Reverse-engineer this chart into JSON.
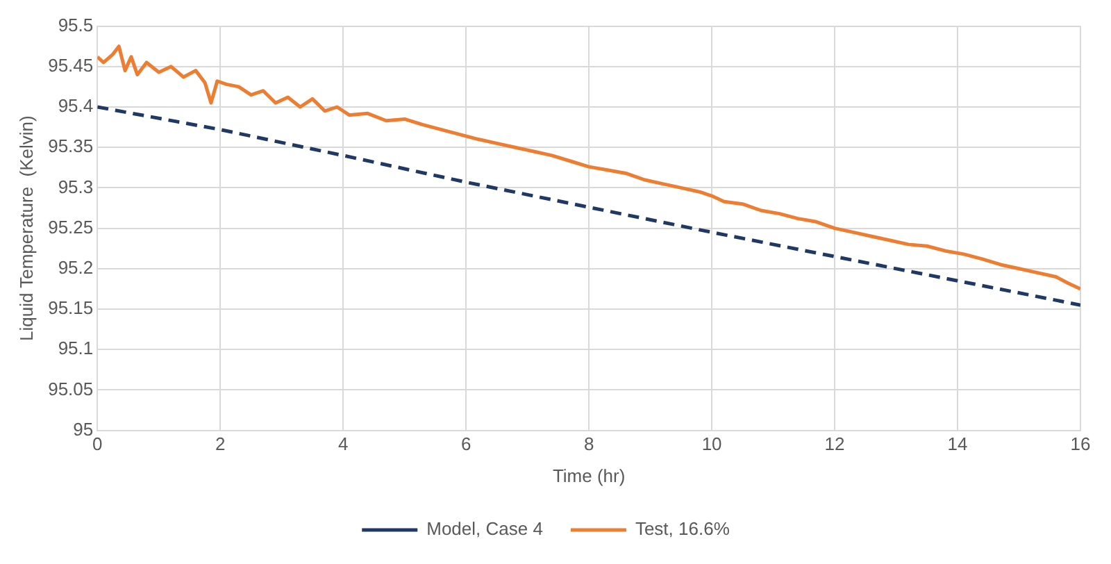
{
  "chart_data": {
    "type": "line",
    "xlabel": "Time (hr)",
    "ylabel": "Liquid Temperature  (Kelvin)",
    "xlim": [
      0,
      16
    ],
    "xticks": [
      0,
      2,
      4,
      6,
      8,
      10,
      12,
      14,
      16
    ],
    "ylim": [
      95,
      95.5
    ],
    "yticks": [
      95,
      95.05,
      95.1,
      95.15,
      95.2,
      95.25,
      95.3,
      95.35,
      95.4,
      95.45,
      95.5
    ],
    "grid": true,
    "legend": "bottom",
    "marker": "none",
    "series": [
      {
        "name": "Model, Case 4",
        "color": "#203864",
        "line_style": "dashed",
        "x": [
          0,
          2,
          4,
          6,
          8,
          10,
          12,
          14,
          16
        ],
        "values": [
          95.4,
          95.372,
          95.34,
          95.307,
          95.276,
          95.245,
          95.215,
          95.185,
          95.155
        ]
      },
      {
        "name": "Test, 16.6%",
        "color": "#ed7d31",
        "line_style": "solid",
        "x": [
          0,
          0.1,
          0.25,
          0.35,
          0.45,
          0.55,
          0.65,
          0.8,
          1.0,
          1.2,
          1.4,
          1.6,
          1.75,
          1.85,
          1.95,
          2.1,
          2.3,
          2.5,
          2.7,
          2.9,
          3.1,
          3.3,
          3.5,
          3.7,
          3.9,
          4.1,
          4.4,
          4.7,
          5.0,
          5.3,
          5.6,
          5.9,
          6.2,
          6.5,
          6.8,
          7.1,
          7.4,
          7.7,
          8.0,
          8.3,
          8.6,
          8.9,
          9.2,
          9.5,
          9.8,
          10.0,
          10.2,
          10.5,
          10.8,
          11.1,
          11.4,
          11.7,
          12.0,
          12.3,
          12.6,
          12.9,
          13.2,
          13.5,
          13.8,
          14.1,
          14.4,
          14.7,
          15.0,
          15.3,
          15.6,
          15.8,
          16.0
        ],
        "values": [
          95.462,
          95.455,
          95.465,
          95.475,
          95.445,
          95.462,
          95.44,
          95.455,
          95.443,
          95.45,
          95.437,
          95.445,
          95.43,
          95.405,
          95.432,
          95.428,
          95.425,
          95.415,
          95.42,
          95.405,
          95.412,
          95.4,
          95.41,
          95.395,
          95.4,
          95.39,
          95.392,
          95.383,
          95.385,
          95.378,
          95.372,
          95.366,
          95.36,
          95.355,
          95.35,
          95.345,
          95.34,
          95.333,
          95.326,
          95.322,
          95.318,
          95.31,
          95.305,
          95.3,
          95.295,
          95.29,
          95.283,
          95.28,
          95.272,
          95.268,
          95.262,
          95.258,
          95.25,
          95.245,
          95.24,
          95.235,
          95.23,
          95.228,
          95.222,
          95.218,
          95.212,
          95.205,
          95.2,
          95.195,
          95.19,
          95.182,
          95.175
        ]
      }
    ]
  }
}
